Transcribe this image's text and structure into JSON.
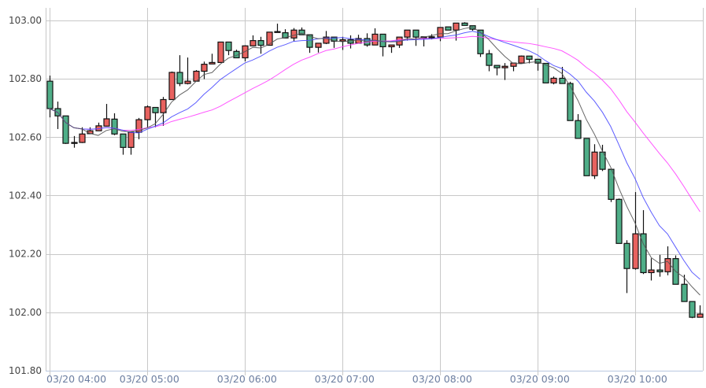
{
  "chart_data": {
    "type": "candlestick",
    "title": "",
    "xlabel": "",
    "ylabel": "",
    "interval_minutes": 5,
    "ylim": [
      101.8,
      103.0
    ],
    "y_ticks": [
      "103.00",
      "102.80",
      "102.60",
      "102.40",
      "102.20",
      "102.00",
      "101.80"
    ],
    "x_ticks": [
      "03/20 04:00",
      "03/20 05:00",
      "03/20 06:00",
      "03/20 07:00",
      "03/20 08:00",
      "03/20 09:00",
      "03/20 10:00"
    ],
    "grid": true,
    "colors": {
      "up": "#e8625f",
      "down": "#4fae88",
      "ma_short": "#555555",
      "ma_mid": "#4b4bff",
      "ma_long": "#ff44ff",
      "grid": "#c8c8c8",
      "axis": "#b8c8e0"
    },
    "ohlc": [
      [
        102.792,
        102.811,
        102.668,
        102.698
      ],
      [
        102.698,
        102.722,
        102.628,
        102.673
      ],
      [
        102.673,
        102.673,
        102.577,
        102.579
      ],
      [
        102.582,
        102.604,
        102.564,
        102.58
      ],
      [
        102.582,
        102.634,
        102.58,
        102.611
      ],
      [
        102.612,
        102.634,
        102.612,
        102.622
      ],
      [
        102.622,
        102.65,
        102.622,
        102.639
      ],
      [
        102.638,
        102.714,
        102.638,
        102.663
      ],
      [
        102.662,
        102.682,
        102.607,
        102.611
      ],
      [
        102.611,
        102.611,
        102.54,
        102.565
      ],
      [
        102.565,
        102.617,
        102.54,
        102.617
      ],
      [
        102.617,
        102.666,
        102.593,
        102.66
      ],
      [
        102.66,
        102.709,
        102.634,
        102.704
      ],
      [
        102.702,
        102.702,
        102.634,
        102.684
      ],
      [
        102.684,
        102.738,
        102.639,
        102.729
      ],
      [
        102.729,
        102.825,
        102.729,
        102.822
      ],
      [
        102.822,
        102.881,
        102.775,
        102.784
      ],
      [
        102.784,
        102.873,
        102.781,
        102.792
      ],
      [
        102.792,
        102.83,
        102.792,
        102.826
      ],
      [
        102.826,
        102.859,
        102.799,
        102.85
      ],
      [
        102.851,
        102.886,
        102.851,
        102.856
      ],
      [
        102.856,
        102.926,
        102.856,
        102.926
      ],
      [
        102.926,
        102.926,
        102.881,
        102.897
      ],
      [
        102.894,
        102.9,
        102.872,
        102.872
      ],
      [
        102.872,
        102.915,
        102.86,
        102.913
      ],
      [
        102.913,
        102.949,
        102.913,
        102.931
      ],
      [
        102.931,
        102.944,
        102.886,
        102.915
      ],
      [
        102.915,
        102.96,
        102.915,
        102.96
      ],
      [
        102.96,
        102.989,
        102.96,
        102.962
      ],
      [
        102.958,
        102.97,
        102.94,
        102.94
      ],
      [
        102.94,
        102.974,
        102.929,
        102.967
      ],
      [
        102.967,
        102.976,
        102.951,
        102.951
      ],
      [
        102.951,
        102.951,
        102.889,
        102.908
      ],
      [
        102.908,
        102.922,
        102.89,
        102.922
      ],
      [
        102.922,
        102.964,
        102.919,
        102.943
      ],
      [
        102.943,
        102.943,
        102.906,
        102.929
      ],
      [
        102.929,
        102.944,
        102.899,
        102.934
      ],
      [
        102.934,
        102.949,
        102.904,
        102.922
      ],
      [
        102.922,
        102.951,
        102.922,
        102.938
      ],
      [
        102.938,
        102.956,
        102.91,
        102.916
      ],
      [
        102.916,
        102.973,
        102.916,
        102.953
      ],
      [
        102.953,
        102.953,
        102.877,
        102.91
      ],
      [
        102.91,
        102.916,
        102.889,
        102.916
      ],
      [
        102.916,
        102.943,
        102.906,
        102.943
      ],
      [
        102.943,
        102.967,
        102.931,
        102.967
      ],
      [
        102.967,
        102.967,
        102.913,
        102.943
      ],
      [
        102.944,
        102.944,
        102.911,
        102.944
      ],
      [
        102.943,
        102.953,
        102.935,
        102.944
      ],
      [
        102.943,
        102.976,
        102.929,
        102.976
      ],
      [
        102.978,
        102.978,
        102.967,
        102.967
      ],
      [
        102.967,
        102.991,
        102.931,
        102.991
      ],
      [
        102.991,
        102.994,
        102.983,
        102.983
      ],
      [
        102.982,
        102.982,
        102.965,
        102.97
      ],
      [
        102.967,
        102.967,
        102.875,
        102.886
      ],
      [
        102.886,
        102.899,
        102.826,
        102.846
      ],
      [
        102.846,
        102.846,
        102.812,
        102.838
      ],
      [
        102.838,
        102.854,
        102.796,
        102.843
      ],
      [
        102.843,
        102.854,
        102.826,
        102.854
      ],
      [
        102.854,
        102.88,
        102.854,
        102.878
      ],
      [
        102.878,
        102.878,
        102.853,
        102.867
      ],
      [
        102.867,
        102.867,
        102.828,
        102.854
      ],
      [
        102.853,
        102.853,
        102.786,
        102.786
      ],
      [
        102.786,
        102.808,
        102.781,
        102.802
      ],
      [
        102.802,
        102.841,
        102.784,
        102.784
      ],
      [
        102.784,
        102.79,
        102.657,
        102.657
      ],
      [
        102.657,
        102.679,
        102.596,
        102.596
      ],
      [
        102.596,
        102.596,
        102.468,
        102.468
      ],
      [
        102.468,
        102.576,
        102.457,
        102.549
      ],
      [
        102.549,
        102.574,
        102.484,
        102.49
      ],
      [
        102.49,
        102.49,
        102.378,
        102.387
      ],
      [
        102.387,
        102.39,
        102.236,
        102.236
      ],
      [
        102.236,
        102.247,
        102.066,
        102.15
      ],
      [
        102.15,
        102.412,
        102.146,
        102.269
      ],
      [
        102.269,
        102.35,
        102.131,
        102.136
      ],
      [
        102.136,
        102.185,
        102.109,
        102.145
      ],
      [
        102.145,
        102.197,
        102.122,
        102.139
      ],
      [
        102.139,
        102.226,
        102.127,
        102.184
      ],
      [
        102.184,
        102.195,
        102.096,
        102.096
      ],
      [
        102.096,
        102.129,
        102.037,
        102.037
      ],
      [
        102.037,
        102.037,
        101.98,
        101.983
      ],
      [
        101.983,
        102.024,
        101.983,
        101.994
      ]
    ]
  }
}
